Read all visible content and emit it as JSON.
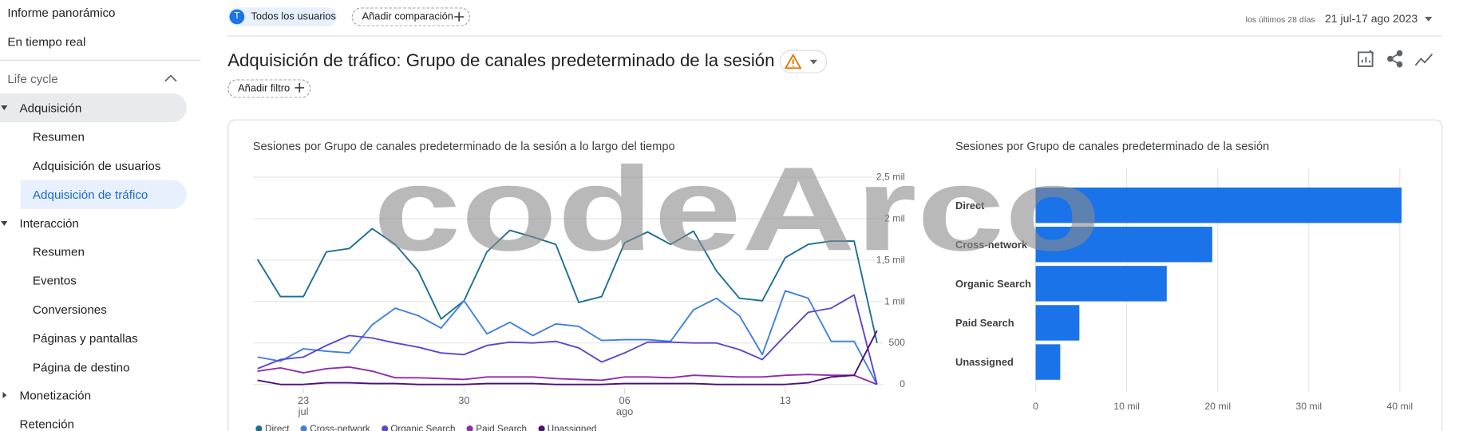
{
  "sidebar": {
    "items": [
      "Informe panorámico",
      "En tiempo real",
      "Life cycle",
      "Adquisición",
      "Resumen",
      "Adquisición de usuarios",
      "Adquisición de tráfico",
      "Interacción",
      "Resumen",
      "Eventos",
      "Conversiones",
      "Páginas y pantallas",
      "Página de destino",
      "Monetización",
      "Retención"
    ]
  },
  "header": {
    "segment_initial": "T",
    "segment": "Todos los usuarios",
    "add_comparison": "Añadir comparación",
    "date_range_label": "los últimos 28 días",
    "date_range": "21 jul-17 ago 2023"
  },
  "report": {
    "title": "Adquisición de tráfico: Grupo de canales predeterminado de la sesión",
    "add_filter": "Añadir filtro"
  },
  "watermark": "codeArco",
  "chart_data": [
    {
      "type": "line",
      "title": "Sesiones por Grupo de canales predeterminado de la sesión a lo largo del tiempo",
      "categories": [
        null,
        null,
        "23 jul",
        null,
        null,
        null,
        null,
        null,
        null,
        "30",
        null,
        null,
        null,
        null,
        null,
        null,
        "06 ago",
        null,
        null,
        null,
        null,
        null,
        null,
        "13",
        null,
        null,
        null,
        null
      ],
      "series": [
        {
          "name": "Direct",
          "color": "#1a6e95",
          "values": [
            1510,
            1060,
            1060,
            1600,
            1640,
            1880,
            1690,
            1370,
            790,
            1010,
            1600,
            1860,
            1780,
            1690,
            990,
            1060,
            1710,
            1840,
            1690,
            1850,
            1370,
            1040,
            1010,
            1530,
            1690,
            1730,
            1730,
            500
          ]
        },
        {
          "name": "Cross-network",
          "color": "#3f7fe0",
          "values": [
            330,
            280,
            430,
            400,
            380,
            720,
            920,
            830,
            680,
            1010,
            610,
            750,
            590,
            730,
            700,
            530,
            540,
            540,
            520,
            900,
            1040,
            830,
            360,
            1130,
            1040,
            520,
            520,
            0
          ]
        },
        {
          "name": "Organic Search",
          "color": "#5b45d1",
          "values": [
            190,
            300,
            330,
            470,
            590,
            560,
            500,
            450,
            380,
            360,
            470,
            510,
            500,
            520,
            440,
            270,
            380,
            510,
            510,
            500,
            500,
            420,
            300,
            590,
            870,
            920,
            1080,
            0
          ]
        },
        {
          "name": "Paid Search",
          "color": "#8e2bb0",
          "values": [
            160,
            200,
            140,
            190,
            210,
            160,
            80,
            80,
            70,
            60,
            90,
            90,
            90,
            70,
            60,
            50,
            90,
            90,
            80,
            110,
            100,
            90,
            90,
            110,
            120,
            110,
            110,
            0
          ]
        },
        {
          "name": "Unassigned",
          "color": "#4a0f7a",
          "values": [
            50,
            0,
            0,
            20,
            20,
            10,
            10,
            0,
            0,
            0,
            10,
            10,
            10,
            0,
            0,
            0,
            10,
            10,
            10,
            10,
            0,
            0,
            0,
            0,
            20,
            90,
            110,
            650
          ]
        }
      ],
      "ylim": [
        0,
        2500
      ],
      "yticks": [
        0,
        500,
        {
          "value": 1000,
          "label": "1 mil"
        },
        {
          "value": 1500,
          "label": "1,5 mil"
        },
        {
          "value": 2000,
          "label": "2 mil"
        },
        {
          "value": 2500,
          "label": "2,5 mil"
        }
      ],
      "grid": true,
      "legend": "bottom"
    },
    {
      "type": "bar",
      "orientation": "horizontal",
      "title": "Sesiones por Grupo de canales predeterminado de la sesión",
      "categories": [
        "Direct",
        "Cross-network",
        "Organic Search",
        "Paid Search",
        "Unassigned"
      ],
      "values": [
        40200,
        19400,
        14400,
        4800,
        2700
      ],
      "color": "#1a73e8",
      "xlim": [
        0,
        41000
      ],
      "xticks": [
        0,
        {
          "value": 10000,
          "label": "10 mil"
        },
        {
          "value": 20000,
          "label": "20 mil"
        },
        {
          "value": 30000,
          "label": "30 mil"
        },
        {
          "value": 40000,
          "label": "40 mil"
        }
      ],
      "grid": true
    }
  ]
}
